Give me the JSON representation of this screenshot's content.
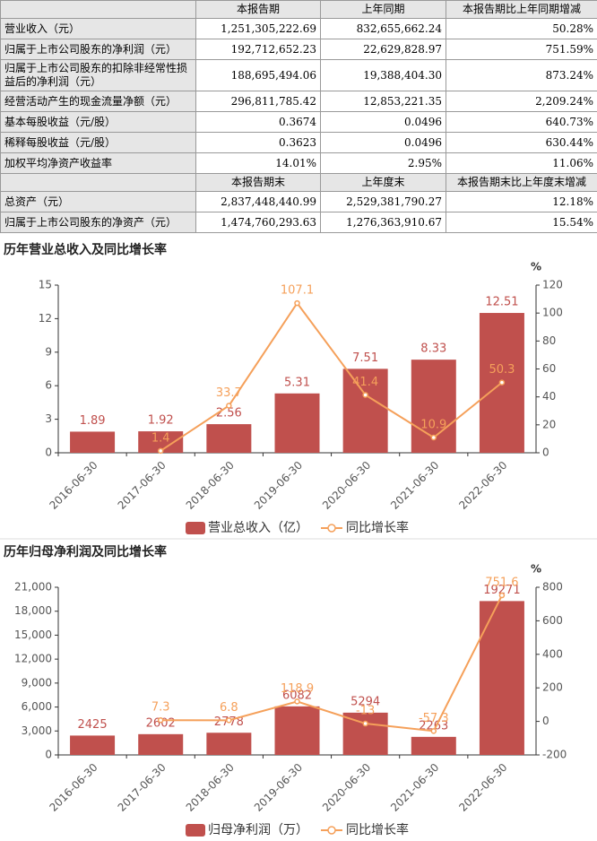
{
  "table": {
    "sections": [
      {
        "header": [
          "",
          "本报告期",
          "上年同期",
          "本报告期比上年同期增减"
        ],
        "rows": [
          [
            "营业收入（元）",
            "1,251,305,222.69",
            "832,655,662.24",
            "50.28%"
          ],
          [
            "归属于上市公司股东的净利润（元）",
            "192,712,652.23",
            "22,629,828.97",
            "751.59%"
          ],
          [
            "归属于上市公司股东的扣除非经常性损益后的净利润（元）",
            "188,695,494.06",
            "19,388,404.30",
            "873.24%"
          ],
          [
            "经营活动产生的现金流量净额（元）",
            "296,811,785.42",
            "12,853,221.35",
            "2,209.24%"
          ],
          [
            "基本每股收益（元/股）",
            "0.3674",
            "0.0496",
            "640.73%"
          ],
          [
            "稀释每股收益（元/股）",
            "0.3623",
            "0.0496",
            "630.44%"
          ],
          [
            "加权平均净资产收益率",
            "14.01%",
            "2.95%",
            "11.06%"
          ]
        ]
      },
      {
        "header": [
          "",
          "本报告期末",
          "上年度末",
          "本报告期末比上年度末增减"
        ],
        "rows": [
          [
            "总资产（元）",
            "2,837,448,440.99",
            "2,529,381,790.27",
            "12.18%"
          ],
          [
            "归属于上市公司股东的净资产（元）",
            "1,474,760,293.63",
            "1,276,363,910.67",
            "15.54%"
          ]
        ]
      }
    ]
  },
  "chart_data": [
    {
      "type": "bar-line",
      "title": "历年营业总收入及同比增长率",
      "y2_unit": "%",
      "categories": [
        "2016-06-30",
        "2017-06-30",
        "2018-06-30",
        "2019-06-30",
        "2020-06-30",
        "2021-06-30",
        "2022-06-30"
      ],
      "series": [
        {
          "name": "营业总收入（亿）",
          "color": "#c0504d",
          "values": [
            1.89,
            1.92,
            2.56,
            5.31,
            7.51,
            8.33,
            12.51
          ]
        },
        {
          "name": "同比增长率",
          "color": "#f5a05a",
          "axis": "y2",
          "values": [
            null,
            1.4,
            33.7,
            107.1,
            41.4,
            10.9,
            50.3
          ]
        }
      ],
      "ylim": [
        0,
        15
      ],
      "yticks": [
        0,
        3,
        6,
        9,
        12,
        15
      ],
      "y2lim": [
        0,
        120
      ],
      "y2ticks": [
        0,
        20,
        40,
        60,
        80,
        100,
        120
      ]
    },
    {
      "type": "bar-line",
      "title": "历年归母净利润及同比增长率",
      "y2_unit": "%",
      "categories": [
        "2016-06-30",
        "2017-06-30",
        "2018-06-30",
        "2019-06-30",
        "2020-06-30",
        "2021-06-30",
        "2022-06-30"
      ],
      "series": [
        {
          "name": "归母净利润（万）",
          "color": "#c0504d",
          "values": [
            2425,
            2602,
            2778,
            6082,
            5294,
            2263,
            19271
          ]
        },
        {
          "name": "同比增长率",
          "color": "#f5a05a",
          "axis": "y2",
          "values": [
            null,
            7.3,
            6.8,
            118.9,
            -13,
            -57.3,
            751.6
          ]
        }
      ],
      "ylim": [
        0,
        21000
      ],
      "yticks": [
        0,
        {
          "value": 3000,
          "label": "3,000"
        },
        {
          "value": 6000,
          "label": "6,000"
        },
        {
          "value": 9000,
          "label": "9,000"
        },
        {
          "value": 12000,
          "label": "12,000"
        },
        {
          "value": 15000,
          "label": "15,000"
        },
        {
          "value": 18000,
          "label": "18,000"
        },
        {
          "value": 21000,
          "label": "21,000"
        }
      ],
      "y2lim": [
        -200,
        800
      ],
      "y2ticks": [
        -200,
        0,
        200,
        400,
        600,
        800
      ]
    }
  ]
}
